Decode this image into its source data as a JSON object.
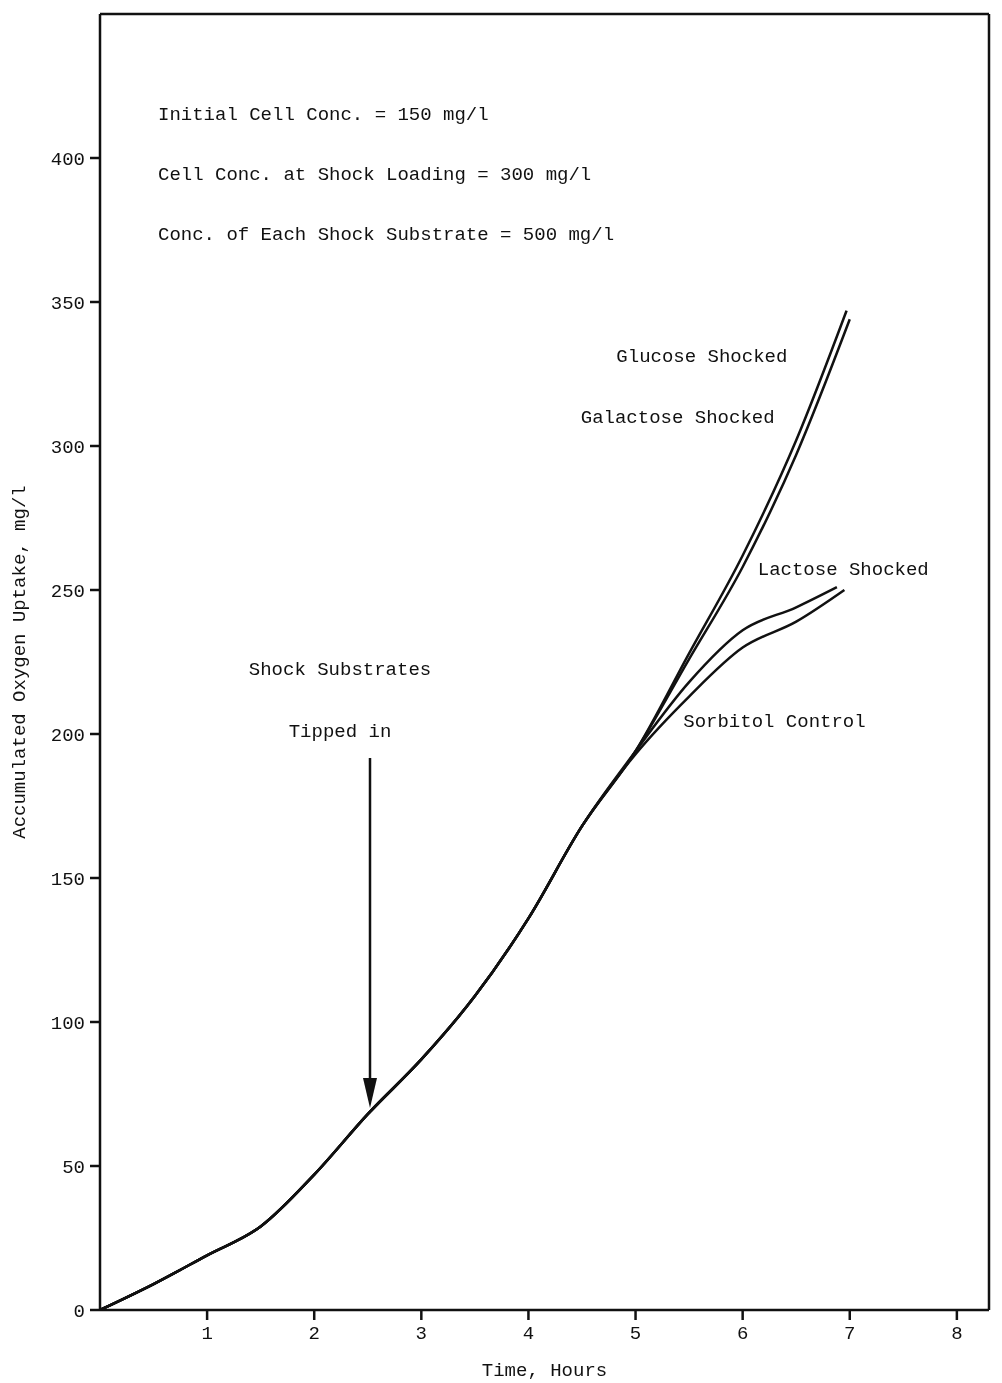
{
  "chart_data": {
    "type": "line",
    "xlabel": "Time, Hours",
    "ylabel": "Accumulated Oxygen Uptake, mg/l",
    "xlim": [
      0,
      8.3
    ],
    "xticks": [
      1,
      2,
      3,
      4,
      5,
      6,
      7,
      8
    ],
    "ylim": [
      0,
      450
    ],
    "yticks": [
      0,
      50,
      100,
      150,
      200,
      250,
      300,
      350,
      400
    ],
    "grid": false,
    "legend": false,
    "marker": "none",
    "line_style": "solid",
    "series": [
      {
        "name": "Glucose Shocked",
        "color": "#111111",
        "x": [
          0,
          0.5,
          1,
          1.5,
          2,
          2.5,
          3,
          3.5,
          4,
          4.5,
          5,
          5.5,
          6,
          6.5,
          6.97
        ],
        "values": [
          0,
          9,
          19,
          29,
          47,
          68,
          87,
          109,
          136,
          168,
          194,
          228,
          262,
          302,
          347
        ]
      },
      {
        "name": "Galactose Shocked",
        "color": "#111111",
        "x": [
          0,
          0.5,
          1,
          1.5,
          2,
          2.5,
          3,
          3.5,
          4,
          4.5,
          5,
          5.5,
          6,
          6.5,
          7
        ],
        "values": [
          0,
          9,
          19,
          29,
          47,
          68,
          87,
          109,
          136,
          168,
          194,
          226,
          258,
          297,
          344
        ]
      },
      {
        "name": "Lactose Shocked",
        "color": "#111111",
        "x": [
          0,
          0.5,
          1,
          1.5,
          2,
          2.5,
          3,
          3.5,
          4,
          4.5,
          5,
          5.5,
          6,
          6.5,
          6.88
        ],
        "values": [
          0,
          9,
          19,
          29,
          47,
          68,
          87,
          109,
          136,
          168,
          194,
          218,
          236,
          244,
          251
        ]
      },
      {
        "name": "Sorbitol Control",
        "color": "#111111",
        "x": [
          0,
          0.5,
          1,
          1.5,
          2,
          2.5,
          3,
          3.5,
          4,
          4.5,
          5,
          5.5,
          6,
          6.5,
          6.95
        ],
        "values": [
          0,
          9,
          19,
          29,
          47,
          68,
          87,
          109,
          136,
          168,
          193,
          213,
          230,
          239,
          250
        ]
      }
    ],
    "annotations": [
      "Initial Cell Conc. = 150 mg/l",
      "Cell Conc. at Shock Loading = 300 mg/l",
      "Conc. of Each Shock Substrate = 500 mg/l",
      "Shock Substrates Tipped in"
    ]
  }
}
